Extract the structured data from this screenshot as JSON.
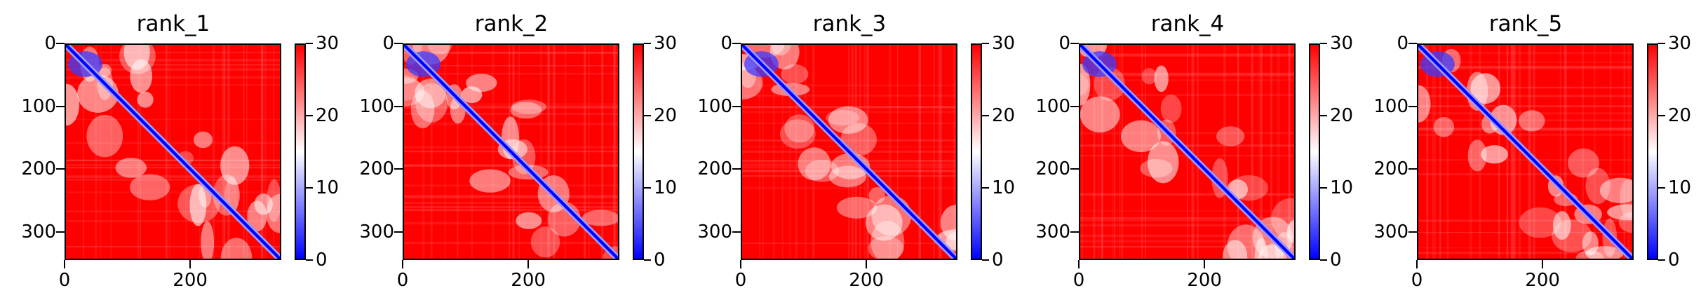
{
  "chart_data": [
    {
      "type": "heatmap",
      "title": "rank_1",
      "xlabel": "",
      "ylabel": "",
      "x_ticks": [
        0,
        200
      ],
      "y_ticks": [
        0,
        100,
        200,
        300
      ],
      "xlim": [
        0,
        345
      ],
      "ylim": [
        345,
        0
      ],
      "colorbar": {
        "min": 0,
        "max": 30,
        "ticks": [
          0,
          10,
          20,
          30
        ],
        "colors": [
          "#0000ff",
          "#ffffff",
          "#ff0000"
        ]
      }
    },
    {
      "type": "heatmap",
      "title": "rank_2",
      "xlabel": "",
      "ylabel": "",
      "x_ticks": [
        0,
        200
      ],
      "y_ticks": [
        0,
        100,
        200,
        300
      ],
      "xlim": [
        0,
        345
      ],
      "ylim": [
        345,
        0
      ],
      "colorbar": {
        "min": 0,
        "max": 30,
        "ticks": [
          0,
          10,
          20,
          30
        ],
        "colors": [
          "#0000ff",
          "#ffffff",
          "#ff0000"
        ]
      }
    },
    {
      "type": "heatmap",
      "title": "rank_3",
      "xlabel": "",
      "ylabel": "",
      "x_ticks": [
        0,
        200
      ],
      "y_ticks": [
        0,
        100,
        200,
        300
      ],
      "xlim": [
        0,
        345
      ],
      "ylim": [
        345,
        0
      ],
      "colorbar": {
        "min": 0,
        "max": 30,
        "ticks": [
          0,
          10,
          20,
          30
        ],
        "colors": [
          "#0000ff",
          "#ffffff",
          "#ff0000"
        ]
      }
    },
    {
      "type": "heatmap",
      "title": "rank_4",
      "xlabel": "",
      "ylabel": "",
      "x_ticks": [
        0,
        200
      ],
      "y_ticks": [
        0,
        100,
        200,
        300
      ],
      "xlim": [
        0,
        345
      ],
      "ylim": [
        345,
        0
      ],
      "colorbar": {
        "min": 0,
        "max": 30,
        "ticks": [
          0,
          10,
          20,
          30
        ],
        "colors": [
          "#0000ff",
          "#ffffff",
          "#ff0000"
        ]
      }
    },
    {
      "type": "heatmap",
      "title": "rank_5",
      "xlabel": "",
      "ylabel": "",
      "x_ticks": [
        0,
        200
      ],
      "y_ticks": [
        0,
        100,
        200,
        300
      ],
      "xlim": [
        0,
        345
      ],
      "ylim": [
        345,
        0
      ],
      "colorbar": {
        "min": 0,
        "max": 30,
        "ticks": [
          0,
          10,
          20,
          30
        ],
        "colors": [
          "#0000ff",
          "#ffffff",
          "#ff0000"
        ]
      }
    }
  ]
}
